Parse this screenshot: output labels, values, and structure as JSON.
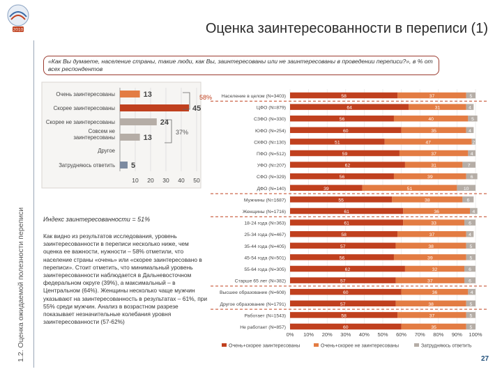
{
  "title": "Оценка заинтересованности в переписи (1)",
  "side_label": "1.2. Оценка ожидаемой полезности переписи",
  "logo_year": "2010",
  "question": "«Как Вы думаете, население страны, такие люди, как Вы, заинтересованы или не заинтересованы в проведении переписи?», в % от всех респондентов",
  "index_text": "Индекс заинтересованности = 51%",
  "body_text": "Как видно из результатов исследования, уровень заинтересованности в переписи несколько ниже, чем оценка ее важности, нужности – 58% отметили, что население страны «очень» или «скорее заинтересовано в переписи». Стоит отметить, что минимальный уровень заинтересованности наблюдается в Дальневосточном федеральном округе (39%), а максимальный – в Центральном (64%). Женщины несколько чаще мужчин указывают на заинтересованность в результатах – 61%, при 55% среди мужчин. Анализ в возрастном разрезе показывает незначительные колебания уровня заинтересованности (57-62%)",
  "page_number": "27",
  "colors": {
    "dark_orange": "#c0401e",
    "orange": "#e37c43",
    "gray": "#b5ada6",
    "slate": "#7c8aa0",
    "question_border": "#9b3b2f",
    "dash": "#c0401e"
  },
  "chart_data": [
    {
      "type": "bar",
      "orientation": "horizontal",
      "categories": [
        "Очень заинтересованы",
        "Скорее заинтересованы",
        "Скорее не заинтересованы",
        "Совсем не заинтересованы",
        "Другое",
        "Затрудняюсь ответить"
      ],
      "values": [
        13,
        45,
        24,
        13,
        0,
        5
      ],
      "x_ticks": [
        10,
        20,
        30,
        40,
        50
      ],
      "xlim": [
        0,
        50
      ],
      "brackets": [
        {
          "label": "58%",
          "from": 0,
          "to": 1
        },
        {
          "label": "37%",
          "from": 2,
          "to": 3
        }
      ]
    },
    {
      "type": "bar",
      "orientation": "horizontal",
      "stacked": true,
      "categories": [
        "Население в целом (N=3403)",
        "ЦФО (N=879)",
        "СЗФО (N=330)",
        "ЮФО (N=254)",
        "СКФО (N=130)",
        "ПФО (N=512)",
        "УФО (N=207)",
        "СФО (N=329)",
        "ДФО (N=140)",
        "Мужчины (N=1687)",
        "Женщины (N=1716)",
        "18-24 года (N=363)",
        "25-34 года (N=467)",
        "35-44 года (N=405)",
        "45-54 года (N=501)",
        "55-64 года (N=305)",
        "Старше 65 лет (N=382)",
        "Высшее образование (N=608)",
        "Другое образование (N=1791)",
        "Работает (N=1543)",
        "Не работает (N=857)"
      ],
      "groups": [
        [
          0
        ],
        [
          1,
          2,
          3,
          4,
          5,
          6,
          7,
          8
        ],
        [
          9,
          10
        ],
        [
          11,
          12,
          13,
          14,
          15,
          16
        ],
        [
          17,
          18
        ],
        [
          19,
          20
        ]
      ],
      "series": [
        {
          "name": "Очень+скорее заинтересованы",
          "values": [
            58,
            64,
            56,
            60,
            51,
            59,
            62,
            56,
            39,
            55,
            61,
            61,
            58,
            57,
            56,
            62,
            57,
            60,
            57,
            58,
            60
          ]
        },
        {
          "name": "Очень+скорее не заинтересованы",
          "values": [
            37,
            31,
            40,
            35,
            47,
            37,
            31,
            39,
            51,
            38,
            36,
            33,
            37,
            38,
            39,
            32,
            37,
            36,
            38,
            37,
            35
          ]
        },
        {
          "name": "Затрудняюсь ответить",
          "values": [
            5,
            4,
            5,
            4,
            2,
            4,
            7,
            6,
            10,
            6,
            4,
            6,
            4,
            5,
            5,
            6,
            6,
            4,
            5,
            5,
            5
          ]
        }
      ],
      "x_ticks": [
        "0%",
        "10%",
        "20%",
        "30%",
        "40%",
        "50%",
        "60%",
        "70%",
        "80%",
        "90%",
        "100%"
      ],
      "xlim": [
        0,
        100
      ],
      "legend": [
        "Очень+скорее заинтересованы",
        "Очень+скорее не заинтересованы",
        "Затрудняюсь ответить"
      ],
      "legend_position": "bottom"
    }
  ]
}
